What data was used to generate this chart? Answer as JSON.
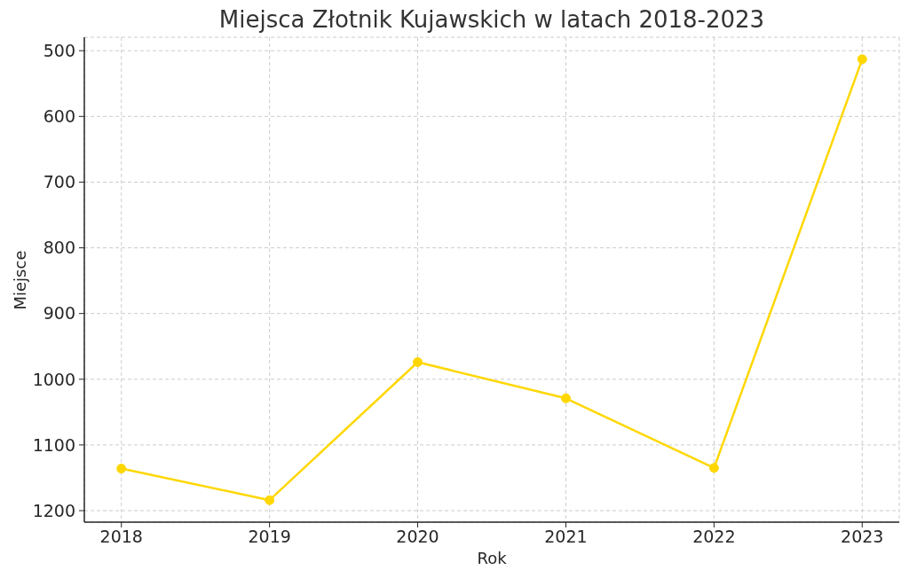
{
  "chart_data": {
    "type": "line",
    "title": "Miejsca Złotnik Kujawskich w latach 2018-2023",
    "xlabel": "Rok",
    "ylabel": "Miejsce",
    "x": [
      2018,
      2019,
      2020,
      2021,
      2022,
      2023
    ],
    "values": [
      1136,
      1184,
      974,
      1029,
      1135,
      513
    ],
    "color": "#ffd700",
    "xlim": [
      2017.75,
      2023.25
    ],
    "xticks": [
      2018,
      2019,
      2020,
      2021,
      2022,
      2023
    ],
    "ylim": [
      1217.5,
      479.5
    ],
    "yticks": [
      500,
      600,
      700,
      800,
      900,
      1000,
      1100,
      1200
    ],
    "grid": true,
    "marker": "circle",
    "line_style": "solid"
  }
}
